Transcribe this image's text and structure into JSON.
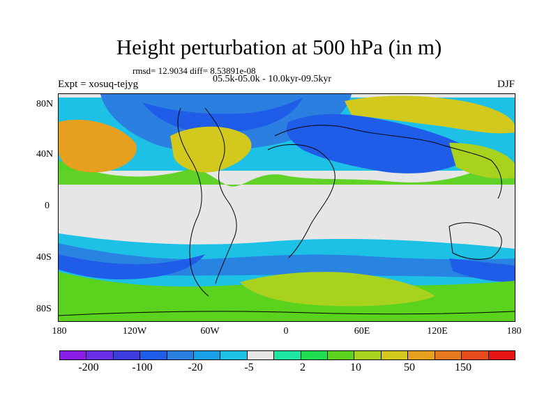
{
  "title": "Height perturbation at 500 hPa (in m)",
  "stats": "rmsd= 12.9034 diff= 8.53891e-08",
  "period": "05.5k-05.0k - 10.0kyr-09.5kyr",
  "expt": "Expt = xosuq-tejyg",
  "season": "DJF",
  "lat_labels": [
    "80N",
    "40N",
    "0",
    "40S",
    "80S"
  ],
  "lon_labels": [
    "180",
    "120W",
    "60W",
    "0",
    "60E",
    "120E",
    "180"
  ],
  "colorbar": {
    "colors": [
      "#8b1ee6",
      "#6a2ee6",
      "#3c3cdc",
      "#1f5ce8",
      "#2a7fe0",
      "#1aa0e8",
      "#1ec1e6",
      "#e6e6e6",
      "#1ee6a0",
      "#20dc50",
      "#5ad21e",
      "#a8d21e",
      "#d2c81e",
      "#e6a01e",
      "#e6781e",
      "#e64b1e",
      "#e61414"
    ],
    "labels": [
      "-200",
      "-100",
      "-20",
      "-5",
      "2",
      "10",
      "50",
      "150"
    ]
  },
  "map": {
    "background": "#e6e6e6",
    "field_colors": {
      "strong_neg": "#1f5ce8",
      "neg": "#2a7fe0",
      "weak_neg": "#1ec1e6",
      "weak_pos": "#5ad21e",
      "pos": "#a8d21e",
      "strong_pos": "#d2c81e",
      "max_pos": "#e6a01e"
    }
  }
}
